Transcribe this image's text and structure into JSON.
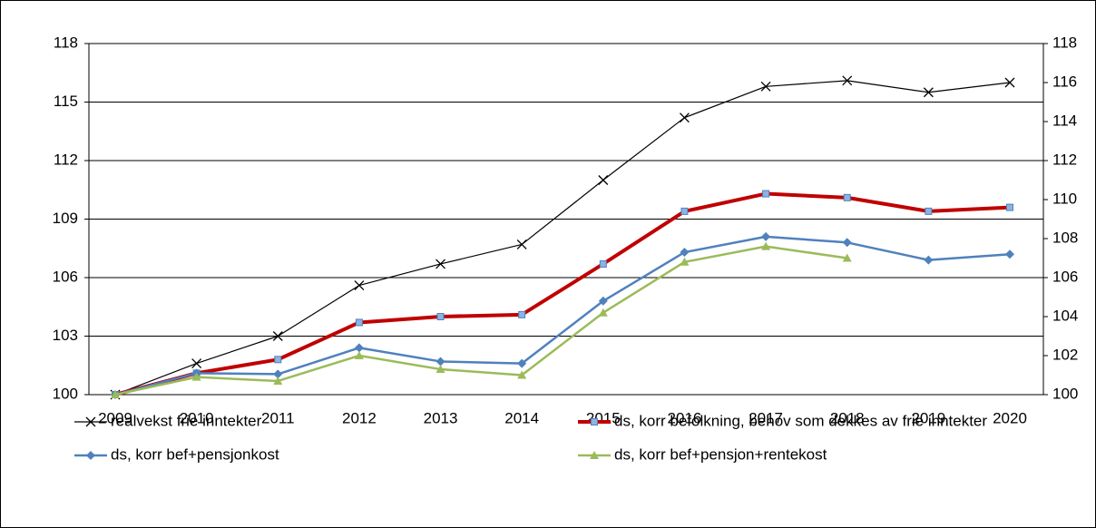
{
  "chart_data": {
    "type": "line",
    "categories": [
      "2009",
      "2010",
      "2011",
      "2012",
      "2013",
      "2014",
      "2015",
      "2016",
      "2017",
      "2018",
      "2019",
      "2020"
    ],
    "series": [
      {
        "name": "realvekst frie inntekter",
        "color": "#000000",
        "marker": "x",
        "width": 1.2,
        "values": [
          100,
          101.6,
          103.0,
          105.6,
          106.7,
          107.7,
          111.0,
          114.2,
          115.8,
          116.1,
          115.5,
          116.0
        ]
      },
      {
        "name": "ds, korr befolkning, behov som dekkes av frie inntekter",
        "color": "#c00000",
        "marker": "square",
        "width": 4,
        "values": [
          100,
          101.1,
          101.8,
          103.7,
          104.0,
          104.1,
          106.7,
          109.4,
          110.3,
          110.1,
          109.4,
          109.6
        ]
      },
      {
        "name": "ds, korr bef+pensjonkost",
        "color": "#4f81bd",
        "marker": "diamond",
        "width": 2.5,
        "values": [
          100,
          101.1,
          101.05,
          102.4,
          101.7,
          101.6,
          104.8,
          107.3,
          108.1,
          107.8,
          106.9,
          107.2
        ]
      },
      {
        "name": "ds, korr bef+pensjon+rentekost",
        "color": "#9bbb59",
        "marker": "triangle",
        "width": 2.5,
        "values": [
          100,
          100.9,
          100.7,
          102.0,
          101.3,
          101.0,
          104.2,
          106.8,
          107.6,
          107.0,
          null,
          null
        ]
      }
    ],
    "ylim": [
      100,
      118
    ],
    "yticks": [
      100,
      103,
      106,
      109,
      112,
      115,
      118
    ],
    "y2lim": [
      100,
      118
    ],
    "y2ticks": [
      100,
      102,
      104,
      106,
      108,
      110,
      112,
      114,
      116,
      118
    ],
    "grid": true,
    "legend": "bottom"
  }
}
